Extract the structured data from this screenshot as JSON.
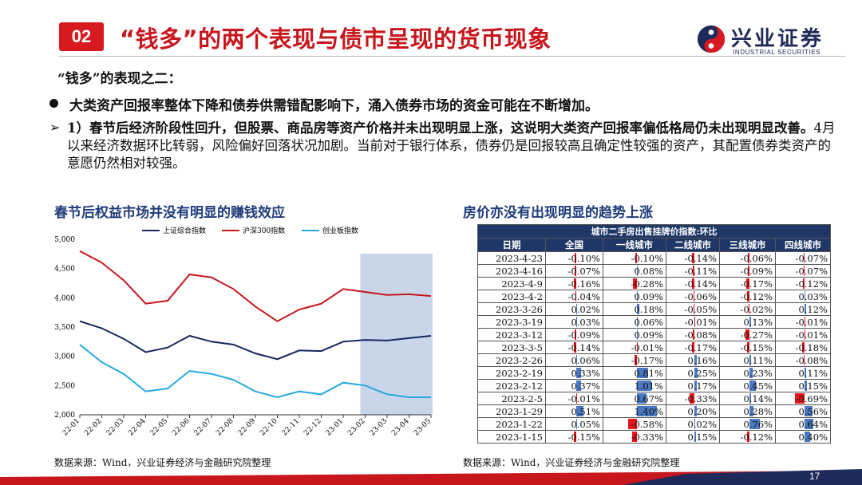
{
  "header": {
    "badge": "02",
    "title": "“钱多”的两个表现与债市呈现的货币现象",
    "logo_cn": "兴业证券",
    "logo_en": "INDUSTRIAL SECURITIES"
  },
  "subtitle": "“钱多”的表现之二：",
  "bullet": "大类资产回报率整体下降和债券供需错配影响下，涌入债券市场的资金可能在不断增加。",
  "para": {
    "arrow": "➢",
    "bold": "1）春节后经济阶段性回升，但股票、商品房等资产价格并未出现明显上涨，这说明大类资产回报率偏低格局仍未出现明显改善。",
    "normal": "4月以来经济数据环比转弱，风险偏好回落状况加剧。当前对于银行体系，债券仍是回报较高且确定性较强的资产，其配置债券类资产的意愿仍然相对较强。"
  },
  "left": {
    "title": "春节后权益市场并没有明显的赚钱效应",
    "source": "数据来源：Wind，兴业证券经济与金融研究院整理"
  },
  "right": {
    "title": "房价亦没有出现明显的趋势上涨",
    "source": "数据来源：Wind，兴业证券经济与金融研究院整理"
  },
  "page_number": "17",
  "colors": {
    "brand_red": "#d71920",
    "navy": "#1e3766",
    "blue_bar": "#4a78c2",
    "red_bar": "#e8141b"
  },
  "chart_data": [
    {
      "type": "line",
      "title": "",
      "xlabel": "",
      "ylabel": "",
      "ylim": [
        2000,
        5000
      ],
      "yticks": [
        "2,000",
        "2,500",
        "3,000",
        "3,500",
        "4,000",
        "4,500",
        "5,000"
      ],
      "categories": [
        "22-01",
        "22-02",
        "22-03",
        "22-04",
        "22-05",
        "22-06",
        "22-07",
        "22-08",
        "22-09",
        "22-10",
        "22-11",
        "22-12",
        "23-01",
        "23-02",
        "23-03",
        "23-04",
        "23-05"
      ],
      "legend_position": "top",
      "highlight_range": [
        "23-02",
        "23-05"
      ],
      "series": [
        {
          "name": "上证综合指数",
          "color": "#16275e",
          "values": [
            3600,
            3480,
            3300,
            3070,
            3150,
            3350,
            3250,
            3200,
            3050,
            2950,
            3100,
            3090,
            3250,
            3280,
            3270,
            3310,
            3350
          ]
        },
        {
          "name": "沪深300指数",
          "color": "#c8161d",
          "values": [
            4800,
            4600,
            4300,
            3900,
            3950,
            4400,
            4350,
            4150,
            3850,
            3600,
            3800,
            3900,
            4150,
            4100,
            4050,
            4060,
            4030
          ]
        },
        {
          "name": "创业板指数",
          "color": "#26a9e0",
          "values": [
            3200,
            2900,
            2700,
            2400,
            2450,
            2750,
            2700,
            2600,
            2400,
            2300,
            2400,
            2350,
            2550,
            2500,
            2350,
            2300,
            2300
          ]
        }
      ]
    },
    {
      "type": "table",
      "title": "城市二手房出售挂牌价指数:环比",
      "columns": [
        "日期",
        "全国",
        "一线城市",
        "二线城市",
        "三线城市",
        "四线城市"
      ],
      "rows": [
        [
          "2023-4-23",
          "-0.10%",
          "-0.10%",
          "-0.14%",
          "-0.06%",
          "-0.07%"
        ],
        [
          "2023-4-16",
          "-0.07%",
          "0.08%",
          "-0.11%",
          "-0.09%",
          "-0.07%"
        ],
        [
          "2023-4-9",
          "-0.16%",
          "-0.28%",
          "-0.14%",
          "-0.17%",
          "-0.12%"
        ],
        [
          "2023-4-2",
          "-0.04%",
          "0.09%",
          "-0.06%",
          "-0.12%",
          "0.03%"
        ],
        [
          "2023-3-26",
          "0.02%",
          "0.18%",
          "-0.05%",
          "-0.02%",
          "0.12%"
        ],
        [
          "2023-3-19",
          "0.03%",
          "0.06%",
          "-0.01%",
          "0.13%",
          "-0.01%"
        ],
        [
          "2023-3-12",
          "-0.09%",
          "0.09%",
          "-0.08%",
          "-0.27%",
          "-0.01%"
        ],
        [
          "2023-3-5",
          "-0.14%",
          "-0.01%",
          "-0.17%",
          "-0.15%",
          "-0.18%"
        ],
        [
          "2023-2-26",
          "0.06%",
          "-0.17%",
          "0.16%",
          "0.11%",
          "-0.08%"
        ],
        [
          "2023-2-19",
          "0.33%",
          "0.81%",
          "0.25%",
          "0.23%",
          "0.11%"
        ],
        [
          "2023-2-12",
          "0.37%",
          "1.01%",
          "0.17%",
          "0.45%",
          "0.15%"
        ],
        [
          "2023-2-5",
          "-0.01%",
          "0.67%",
          "-0.33%",
          "0.14%",
          "-0.69%"
        ],
        [
          "2023-1-29",
          "0.51%",
          "1.40%",
          "0.20%",
          "0.28%",
          "0.56%"
        ],
        [
          "2023-1-22",
          "0.05%",
          "-0.58%",
          "0.02%",
          "0.76%",
          "0.64%"
        ],
        [
          "2023-1-15",
          "-0.15%",
          "-0.33%",
          "0.15%",
          "-0.12%",
          "0.40%"
        ]
      ]
    }
  ]
}
